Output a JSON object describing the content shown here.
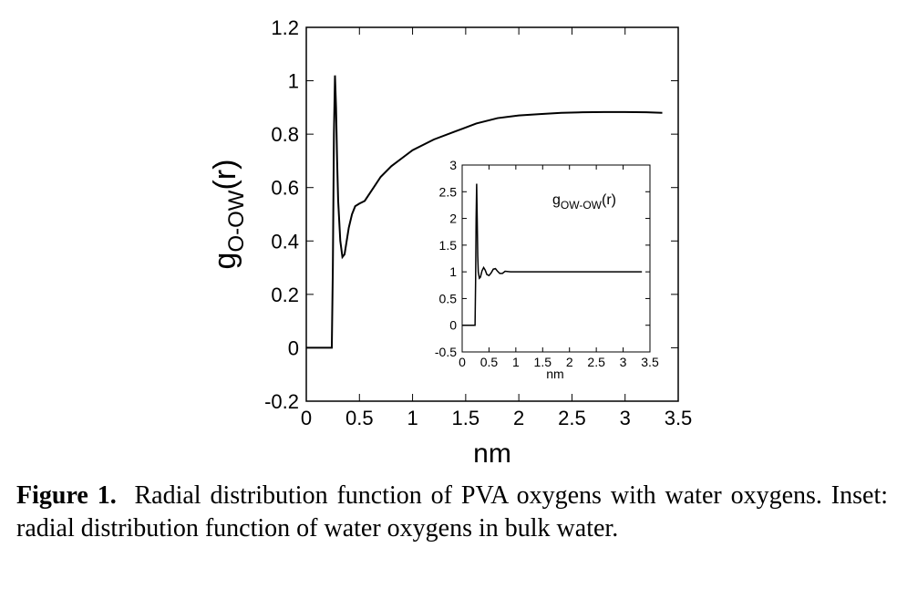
{
  "chart_data": [
    {
      "type": "line",
      "title": "",
      "xlabel": "nm",
      "ylabel_base": "g",
      "ylabel_sub": "O-OW",
      "ylabel_arg": "(r)",
      "xlim": [
        0,
        3.5
      ],
      "ylim": [
        -0.2,
        1.2
      ],
      "xticks": [
        "0",
        "0.5",
        "1",
        "1.5",
        "2",
        "2.5",
        "3",
        "3.5"
      ],
      "yticks": [
        "-0.2",
        "0",
        "0.2",
        "0.4",
        "0.6",
        "0.8",
        "1",
        "1.2"
      ],
      "series": [
        {
          "name": "g_O-OW(r)",
          "x": [
            0,
            0.24,
            0.25,
            0.26,
            0.27,
            0.28,
            0.29,
            0.3,
            0.32,
            0.34,
            0.36,
            0.38,
            0.4,
            0.43,
            0.46,
            0.5,
            0.55,
            0.6,
            0.65,
            0.7,
            0.8,
            0.9,
            1.0,
            1.2,
            1.4,
            1.6,
            1.8,
            2.0,
            2.2,
            2.4,
            2.6,
            2.8,
            3.0,
            3.2,
            3.35
          ],
          "y": [
            0,
            0,
            0.3,
            0.8,
            1.02,
            0.9,
            0.7,
            0.55,
            0.4,
            0.34,
            0.35,
            0.4,
            0.45,
            0.5,
            0.53,
            0.54,
            0.55,
            0.58,
            0.61,
            0.64,
            0.68,
            0.71,
            0.74,
            0.78,
            0.81,
            0.84,
            0.86,
            0.87,
            0.875,
            0.88,
            0.882,
            0.883,
            0.883,
            0.882,
            0.88
          ]
        }
      ]
    },
    {
      "type": "line",
      "title": "",
      "inset": true,
      "xlabel": "nm",
      "label_base": "g",
      "label_sub": "OW-OW",
      "label_arg": "(r)",
      "xlim": [
        0,
        3.5
      ],
      "ylim": [
        -0.5,
        3
      ],
      "xticks": [
        "0",
        "0.5",
        "1",
        "1.5",
        "2",
        "2.5",
        "3",
        "3.5"
      ],
      "yticks": [
        "-0.5",
        "0",
        "0.5",
        "1",
        "1.5",
        "2",
        "2.5",
        "3"
      ],
      "series": [
        {
          "name": "g_OW-OW(r)",
          "x": [
            0,
            0.24,
            0.25,
            0.26,
            0.27,
            0.28,
            0.29,
            0.3,
            0.32,
            0.34,
            0.37,
            0.4,
            0.43,
            0.46,
            0.5,
            0.54,
            0.58,
            0.62,
            0.66,
            0.7,
            0.75,
            0.8,
            0.9,
            1.0,
            1.5,
            2.0,
            2.5,
            3.0,
            3.35
          ],
          "y": [
            0,
            0,
            0.8,
            2.0,
            2.65,
            2.0,
            1.3,
            1.0,
            0.88,
            0.9,
            1.02,
            1.08,
            1.03,
            0.95,
            0.93,
            0.98,
            1.05,
            1.06,
            1.01,
            0.97,
            0.97,
            1.01,
            1.0,
            1.0,
            1.0,
            1.0,
            1.0,
            1.0,
            1.0
          ]
        }
      ]
    }
  ],
  "caption": {
    "label": "Figure 1.",
    "text": "Radial distribution function of PVA oxygens with water oxygens. Inset:  radial distribution function of water oxygens in bulk water."
  }
}
